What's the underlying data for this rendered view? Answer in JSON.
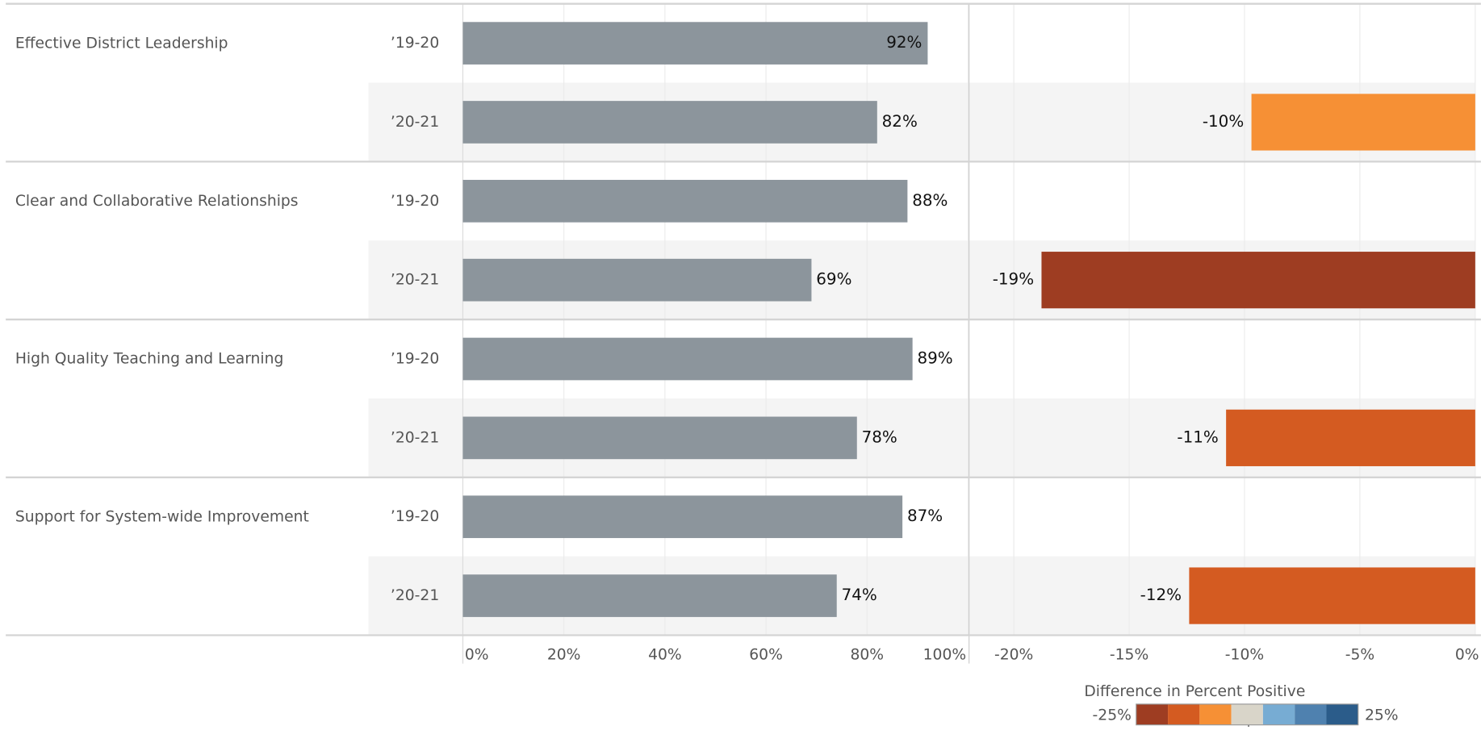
{
  "chart_data": {
    "type": "bar",
    "categories": [
      "Effective District Leadership",
      "Clear and Collaborative Relationships",
      "High Quality Teaching and Learning",
      "Support for System-wide Improvement"
    ],
    "series": [
      {
        "name": "’19-20",
        "color": "#8c959c",
        "values": [
          92,
          88,
          89,
          87
        ],
        "value_labels": [
          "92%",
          "88%",
          "89%",
          "87%"
        ]
      },
      {
        "name": "’20-21",
        "color": "#8c959c",
        "values": [
          82,
          69,
          78,
          74
        ],
        "value_labels": [
          "82%",
          "69%",
          "78%",
          "74%"
        ]
      }
    ],
    "xlim": [
      0,
      100
    ],
    "xticks": [
      {
        "value": 0,
        "label": "0%"
      },
      {
        "value": 20,
        "label": "20%"
      },
      {
        "value": 40,
        "label": "40%"
      },
      {
        "value": 60,
        "label": "60%"
      },
      {
        "value": 80,
        "label": "80%"
      },
      {
        "value": 100,
        "label": "100%"
      }
    ],
    "difference": {
      "values": [
        -9.7,
        -18.8,
        -10.8,
        -12.4
      ],
      "value_labels": [
        "-10%",
        "-19%",
        "-11%",
        "-12%"
      ],
      "colors": [
        "#f69035",
        "#9e3d22",
        "#d45b21",
        "#d45b21"
      ],
      "xlim": [
        -21.9,
        0
      ],
      "xticks": [
        {
          "value": -20,
          "label": "-20%"
        },
        {
          "value": -15,
          "label": "-15%"
        },
        {
          "value": -10,
          "label": "-10%"
        },
        {
          "value": -5,
          "label": "-5%"
        },
        {
          "value": 0,
          "label": "0%"
        }
      ]
    },
    "legend": {
      "title": "Difference in Percent Positive",
      "min_label": "-25%",
      "max_label": "25%",
      "colors": [
        "#9e3d22",
        "#d45b21",
        "#f69035",
        "#d9d5c9",
        "#77acd3",
        "#4f81af",
        "#2b5c8a"
      ]
    },
    "grid": true
  }
}
